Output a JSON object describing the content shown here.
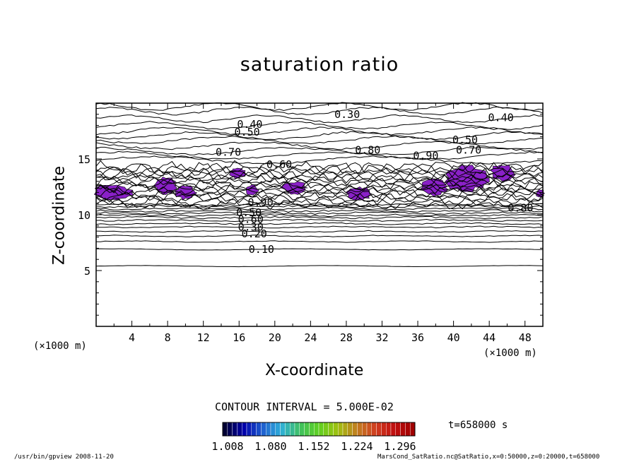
{
  "chart_data": {
    "type": "contour",
    "title": "saturation ratio",
    "xlabel": "X-coordinate",
    "ylabel": "Z-coordinate",
    "x_unit": "(×1000 m)",
    "x_unit_right": "(×1000 m)",
    "xlim": [
      0,
      50
    ],
    "ylim": [
      0,
      20
    ],
    "x_ticks": [
      4,
      8,
      12,
      16,
      20,
      24,
      28,
      32,
      36,
      40,
      44,
      48
    ],
    "y_ticks": [
      5,
      10,
      15
    ],
    "contour_interval_text": "CONTOUR INTERVAL = 5.000E-02",
    "contour_labels": [
      "0.10",
      "0.20",
      "0.30",
      "0.40",
      "0.50",
      "0.60",
      "0.70",
      "0.80",
      "0.90"
    ],
    "shading_levels": [
      "1.008",
      "1.080",
      "1.152",
      "1.224",
      "1.296"
    ],
    "colorbar_colors": [
      "#000033",
      "#0000aa",
      "#1f5fd0",
      "#2fb0d8",
      "#3fc060",
      "#5fd020",
      "#a0c010",
      "#c08020",
      "#d04020",
      "#c01010",
      "#a00000"
    ],
    "shading_color": "#8a20c8",
    "time_label": "t=658000 s",
    "footer_left": "/usr/bin/gpview   2008-11-20",
    "footer_right": "MarsCond_SatRatio.nc@SatRatio,x=0:50000,z=0:20000,t=658000"
  }
}
